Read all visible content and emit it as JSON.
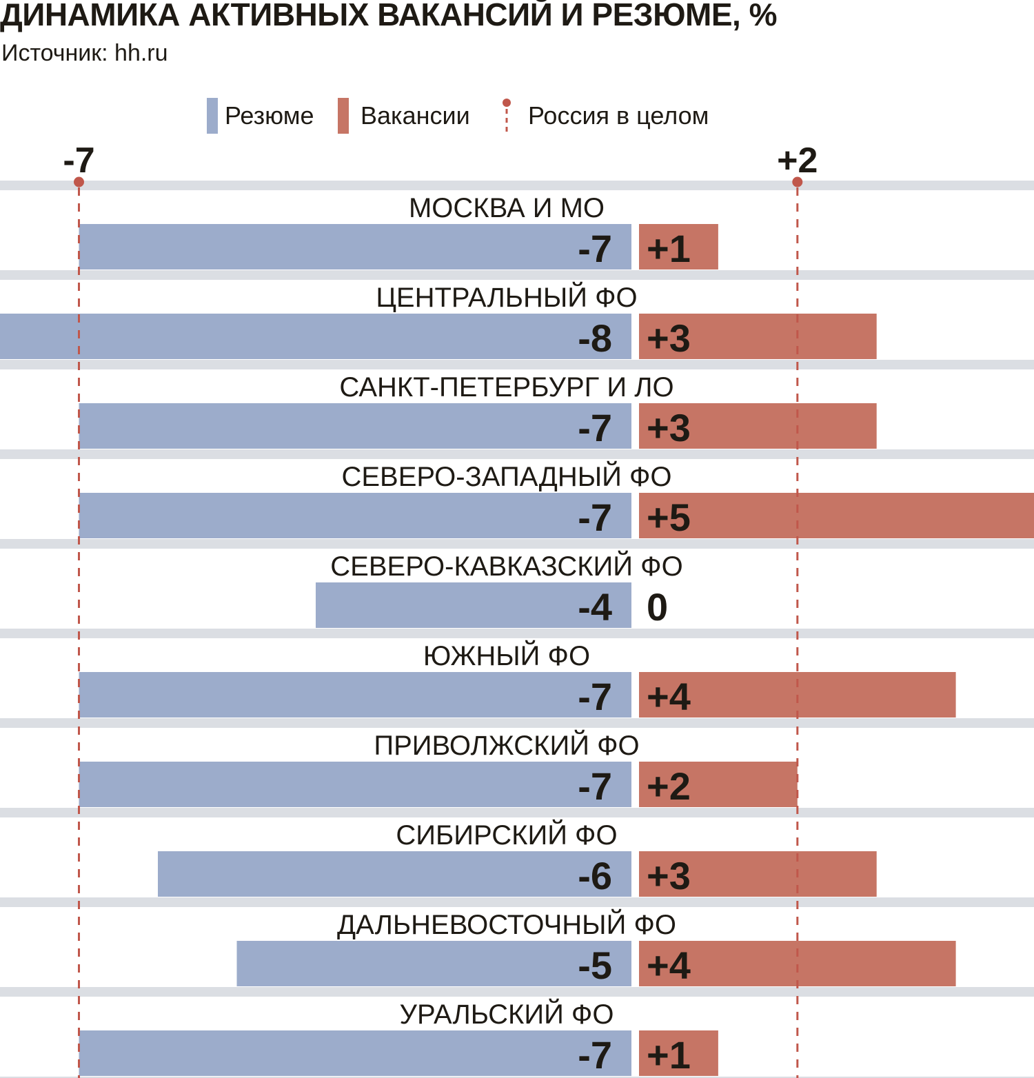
{
  "title": "ДИНАМИКА АКТИВНЫХ ВАКАНСИЙ И РЕЗЮМЕ, %",
  "subtitle": "Источник: hh.ru",
  "colors": {
    "resume": "#9caccb",
    "vacancy": "#c67565",
    "russia": "#c0574b",
    "band": "#dbdee3",
    "text": "#1e1a14"
  },
  "legend": {
    "resume": "Резюме",
    "vacancy": "Вакансии",
    "russia": "Россия в целом"
  },
  "chart_data": {
    "type": "bar",
    "categories": [
      "МОСКВА И МО",
      "ЦЕНТРАЛЬНЫЙ ФО",
      "САНКТ-ПЕТЕРБУРГ И ЛО",
      "СЕВЕРО-ЗАПАДНЫЙ ФО",
      "СЕВЕРО-КАВКАЗСКИЙ ФО",
      "ЮЖНЫЙ ФО",
      "ПРИВОЛЖСКИЙ ФО",
      "СИБИРСКИЙ ФО",
      "ДАЛЬНЕВОСТОЧНЫЙ ФО",
      "УРАЛЬСКИЙ ФО"
    ],
    "series": [
      {
        "name": "Резюме",
        "values": [
          -7,
          -8,
          -7,
          -7,
          -4,
          -7,
          -7,
          -6,
          -5,
          -7
        ],
        "labels": [
          "-7",
          "-8",
          "-7",
          "-7",
          "-4",
          "-7",
          "-7",
          "-6",
          "-5",
          "-7"
        ]
      },
      {
        "name": "Вакансии",
        "values": [
          1,
          3,
          3,
          5,
          0,
          4,
          2,
          3,
          4,
          1
        ],
        "labels": [
          "+1",
          "+3",
          "+3",
          "+5",
          "0",
          "+4",
          "+2",
          "+3",
          "+4",
          "+1"
        ]
      }
    ],
    "reference_lines": [
      {
        "series": "Резюме",
        "value": -7,
        "label": "-7"
      },
      {
        "series": "Вакансии",
        "value": 2,
        "label": "+2"
      }
    ],
    "legend_position": "top",
    "grid": false
  }
}
